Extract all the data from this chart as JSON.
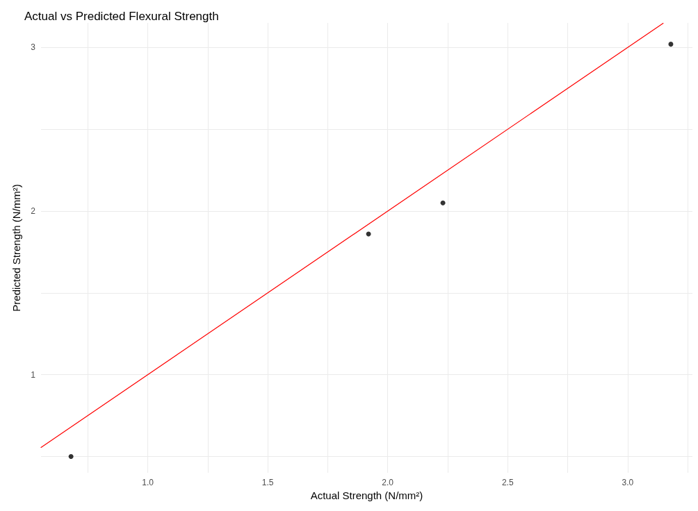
{
  "chart_data": {
    "type": "scatter",
    "title": "Actual vs Predicted Flexural Strength",
    "xlabel": "Actual Strength (N/mm²)",
    "ylabel": "Predicted Strength (N/mm²)",
    "series": [
      {
        "color": "#000000",
        "marker": "circle",
        "x": [
          0.68,
          1.92,
          2.23,
          3.18
        ],
        "values": [
          0.5,
          1.86,
          2.05,
          3.02
        ]
      },
      {
        "type": "line",
        "color": "#ff0000",
        "marker": "none",
        "line_style": "solid",
        "x": [
          0.555,
          3.148
        ],
        "values": [
          0.555,
          3.148
        ]
      }
    ],
    "xlim": [
      0.555,
      3.27
    ],
    "ylim": [
      0.4,
      3.15
    ],
    "xticks": [
      {
        "value": 0.75,
        "label": null
      },
      {
        "value": 1,
        "label": "1.0"
      },
      {
        "value": 1.25,
        "label": null
      },
      {
        "value": 1.5,
        "label": "1.5"
      },
      {
        "value": 1.75,
        "label": null
      },
      {
        "value": 2,
        "label": "2.0"
      },
      {
        "value": 2.25,
        "label": null
      },
      {
        "value": 2.5,
        "label": "2.5"
      },
      {
        "value": 2.75,
        "label": null
      },
      {
        "value": 3,
        "label": "3.0"
      },
      {
        "value": 3.25,
        "label": null
      }
    ],
    "yticks": [
      {
        "value": 0.5,
        "label": null
      },
      1,
      {
        "value": 1.5,
        "label": null
      },
      2,
      {
        "value": 2.5,
        "label": null
      },
      3
    ],
    "grid": true
  }
}
